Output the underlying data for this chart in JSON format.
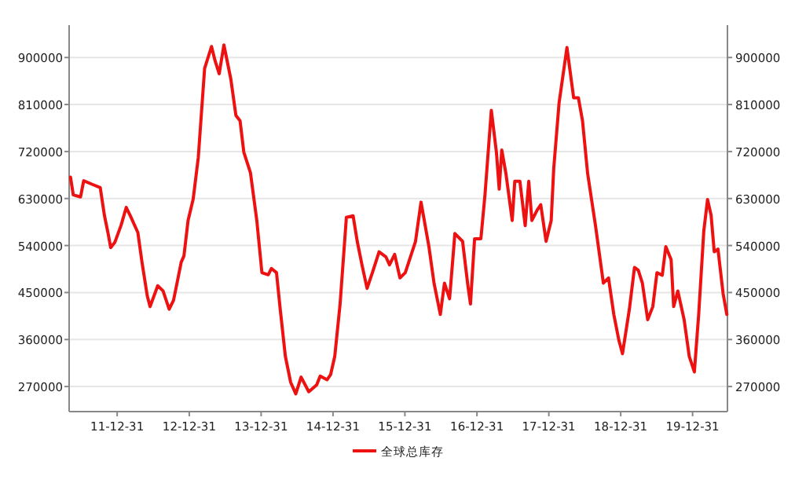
{
  "chart_data": {
    "type": "line",
    "legend": "bottom",
    "grid": "y",
    "line_style": "solid",
    "marker": "none",
    "xlim": [
      "2011-05-01",
      "2020-06-25"
    ],
    "xticks": [
      {
        "value": "2011-12-31",
        "label": "11-12-31"
      },
      {
        "value": "2012-12-31",
        "label": "12-12-31"
      },
      {
        "value": "2013-12-31",
        "label": "13-12-31"
      },
      {
        "value": "2014-12-31",
        "label": "14-12-31"
      },
      {
        "value": "2015-12-31",
        "label": "15-12-31"
      },
      {
        "value": "2016-12-31",
        "label": "16-12-31"
      },
      {
        "value": "2017-12-31",
        "label": "17-12-31"
      },
      {
        "value": "2018-12-31",
        "label": "18-12-31"
      },
      {
        "value": "2019-12-31",
        "label": "19-12-31"
      }
    ],
    "ylim": [
      222000,
      962000
    ],
    "yticks": [
      270000,
      360000,
      450000,
      540000,
      630000,
      720000,
      810000,
      900000
    ],
    "y2lim": [
      222000,
      962000
    ],
    "y2ticks": [
      270000,
      360000,
      450000,
      540000,
      630000,
      720000,
      810000,
      900000
    ],
    "x": [
      "2011-05-08",
      "2011-05-22",
      "2011-06-28",
      "2011-07-14",
      "2011-08-27",
      "2011-10-06",
      "2011-10-27",
      "2011-11-15",
      "2011-11-28",
      "2011-12-19",
      "2012-01-20",
      "2012-02-15",
      "2012-03-08",
      "2012-04-14",
      "2012-05-05",
      "2012-06-01",
      "2012-06-15",
      "2012-07-24",
      "2012-08-20",
      "2012-09-20",
      "2012-10-12",
      "2012-10-30",
      "2012-11-20",
      "2012-12-04",
      "2012-12-25",
      "2013-01-20",
      "2013-02-15",
      "2013-03-19",
      "2013-04-23",
      "2013-05-11",
      "2013-06-01",
      "2013-06-25",
      "2013-07-30",
      "2013-08-25",
      "2013-09-15",
      "2013-10-04",
      "2013-11-07",
      "2013-12-09",
      "2014-01-04",
      "2014-02-05",
      "2014-02-21",
      "2014-03-19",
      "2014-04-07",
      "2014-05-03",
      "2014-05-30",
      "2014-06-25",
      "2014-07-22",
      "2014-08-30",
      "2014-10-09",
      "2014-10-27",
      "2014-12-01",
      "2014-12-19",
      "2015-01-09",
      "2015-02-05",
      "2015-03-09",
      "2015-04-12",
      "2015-05-03",
      "2015-05-27",
      "2015-06-22",
      "2015-07-19",
      "2015-08-22",
      "2015-09-26",
      "2015-10-14",
      "2015-11-09",
      "2015-12-06",
      "2016-01-02",
      "2016-02-23",
      "2016-03-22",
      "2016-05-01",
      "2016-05-27",
      "2016-06-28",
      "2016-07-19",
      "2016-08-14",
      "2016-09-10",
      "2016-10-19",
      "2016-11-15",
      "2016-11-28",
      "2016-12-19",
      "2017-01-20",
      "2017-02-10",
      "2017-03-14",
      "2017-04-09",
      "2017-04-23",
      "2017-05-06",
      "2017-05-27",
      "2017-06-28",
      "2017-07-11",
      "2017-08-06",
      "2017-09-02",
      "2017-09-20",
      "2017-10-06",
      "2017-11-02",
      "2017-11-20",
      "2017-12-17",
      "2018-01-12",
      "2018-01-25",
      "2018-02-21",
      "2018-04-02",
      "2018-05-06",
      "2018-05-30",
      "2018-06-20",
      "2018-07-16",
      "2018-08-25",
      "2018-10-04",
      "2018-10-30",
      "2018-11-26",
      "2018-12-22",
      "2019-01-09",
      "2019-02-13",
      "2019-03-11",
      "2019-03-30",
      "2019-04-20",
      "2019-05-17",
      "2019-06-12",
      "2019-07-03",
      "2019-07-30",
      "2019-08-17",
      "2019-09-13",
      "2019-09-26",
      "2019-10-17",
      "2019-11-18",
      "2019-12-14",
      "2020-01-09",
      "2020-01-31",
      "2020-02-26",
      "2020-03-16",
      "2020-04-03",
      "2020-04-19",
      "2020-05-08",
      "2020-06-03",
      "2020-06-22"
    ],
    "series": [
      {
        "name": "全球总库存",
        "color": "#ee1111",
        "values": [
          671000,
          637000,
          633000,
          664000,
          657000,
          651000,
          598000,
          563000,
          536000,
          546000,
          579000,
          613000,
          596000,
          565000,
          508000,
          443000,
          423000,
          463000,
          453000,
          418000,
          435000,
          468000,
          508000,
          520000,
          588000,
          629000,
          709000,
          879000,
          921000,
          894000,
          869000,
          924000,
          859000,
          789000,
          779000,
          719000,
          679000,
          588000,
          488000,
          484000,
          496000,
          488000,
          418000,
          328000,
          278000,
          256000,
          288000,
          260000,
          273000,
          290000,
          283000,
          293000,
          328000,
          428000,
          594000,
          597000,
          548000,
          503000,
          458000,
          488000,
          528000,
          518000,
          503000,
          523000,
          478000,
          488000,
          548000,
          623000,
          538000,
          468000,
          408000,
          468000,
          438000,
          563000,
          548000,
          463000,
          428000,
          553000,
          553000,
          638000,
          799000,
          718000,
          648000,
          723000,
          678000,
          588000,
          663000,
          663000,
          578000,
          663000,
          588000,
          608000,
          618000,
          548000,
          588000,
          688000,
          813000,
          919000,
          823000,
          823000,
          779000,
          678000,
          578000,
          468000,
          478000,
          408000,
          358000,
          333000,
          418000,
          498000,
          493000,
          468000,
          398000,
          423000,
          488000,
          483000,
          538000,
          513000,
          423000,
          453000,
          398000,
          328000,
          298000,
          408000,
          568000,
          628000,
          598000,
          528000,
          533000,
          448000,
          408000
        ]
      }
    ]
  }
}
